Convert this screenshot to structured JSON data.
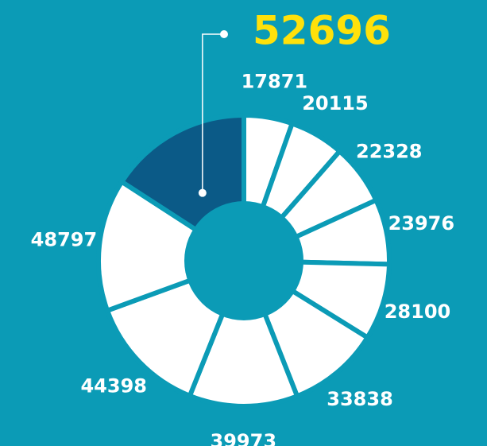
{
  "chart_data": {
    "type": "donut",
    "values": [
      17871,
      20115,
      22328,
      23976,
      28100,
      33838,
      39973,
      44398,
      48797,
      52696
    ],
    "colors": [
      "#ffffff",
      "#ffffff",
      "#ffffff",
      "#ffffff",
      "#ffffff",
      "#ffffff",
      "#ffffff",
      "#ffffff",
      "#ffffff",
      "#0b5a87"
    ],
    "label_colors": [
      "#ffffff",
      "#ffffff",
      "#ffffff",
      "#ffffff",
      "#ffffff",
      "#ffffff",
      "#ffffff",
      "#ffffff",
      "#ffffff",
      "#ffe10a"
    ]
  }
}
